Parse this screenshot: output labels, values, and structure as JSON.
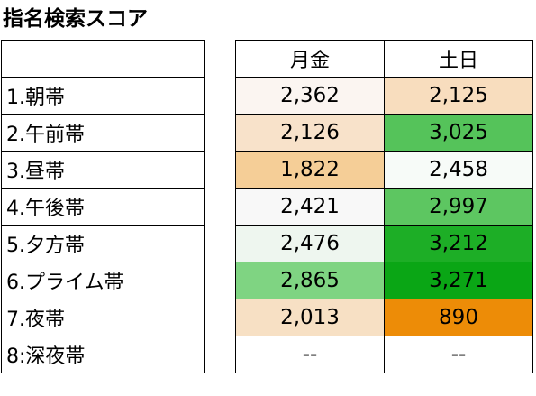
{
  "title": "指名検索スコア",
  "columns": [
    "月金",
    "土日"
  ],
  "rows": [
    {
      "label": "1.朝帯",
      "weekday": "2,362",
      "weekend": "2,125",
      "weekday_color": "#FBF5F1",
      "weekend_color": "#F8DDBE"
    },
    {
      "label": "2.午前帯",
      "weekday": "2,126",
      "weekend": "3,025",
      "weekday_color": "#F8E2CA",
      "weekend_color": "#55C35A"
    },
    {
      "label": "3.昼帯",
      "weekday": "1,822",
      "weekend": "2,458",
      "weekday_color": "#F5CE97",
      "weekend_color": "#F7FBF8"
    },
    {
      "label": "4.午後帯",
      "weekday": "2,421",
      "weekend": "2,997",
      "weekday_color": "#F8F8F8",
      "weekend_color": "#5DC661"
    },
    {
      "label": "5.夕方帯",
      "weekday": "2,476",
      "weekend": "3,212",
      "weekday_color": "#EEF6EF",
      "weekend_color": "#1DAE26"
    },
    {
      "label": "6.プライム帯",
      "weekday": "2,865",
      "weekend": "3,271",
      "weekday_color": "#7FD482",
      "weekend_color": "#0AA615"
    },
    {
      "label": "7.夜帯",
      "weekday": "2,013",
      "weekend": "890",
      "weekday_color": "#F7E0C4",
      "weekend_color": "#ED8C07"
    },
    {
      "label": "8:深夜帯",
      "weekday": "--",
      "weekend": "--",
      "weekday_color": "#FFFFFF",
      "weekend_color": "#FFFFFF"
    }
  ]
}
